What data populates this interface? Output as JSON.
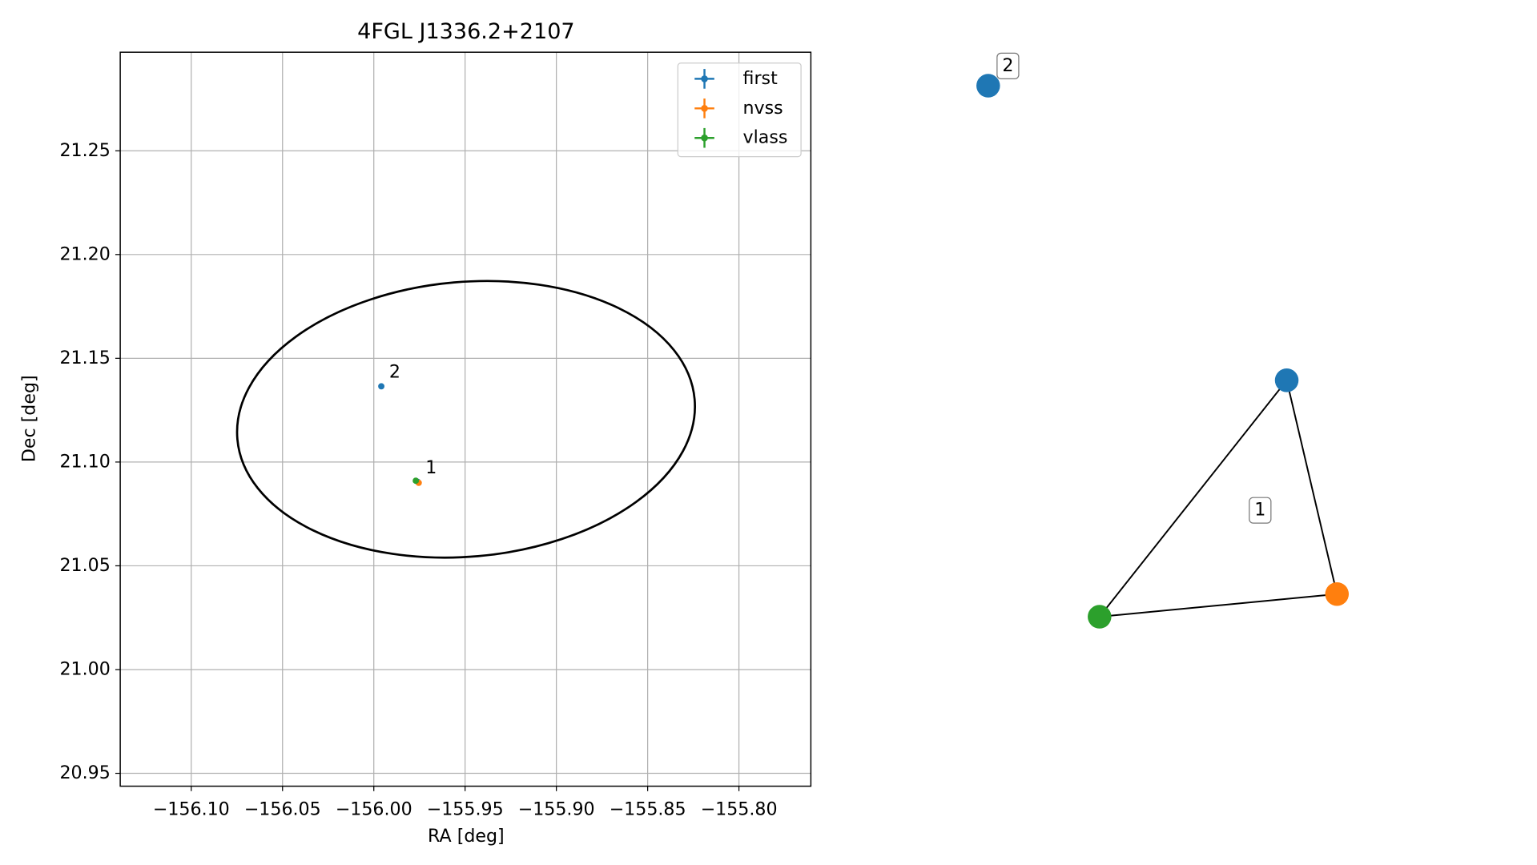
{
  "chart_data": [
    {
      "type": "scatter",
      "title": "4FGL J1336.2+2107",
      "xlabel": "RA [deg]",
      "ylabel": "Dec [deg]",
      "xlim": [
        -156.1389,
        -155.7606
      ],
      "ylim": [
        20.9438,
        21.2975
      ],
      "xticks": [
        {
          "value": -156.1,
          "label": "−156.10"
        },
        {
          "value": -156.05,
          "label": "−156.05"
        },
        {
          "value": -156.0,
          "label": "−156.00"
        },
        {
          "value": -155.95,
          "label": "−155.95"
        },
        {
          "value": -155.9,
          "label": "−155.90"
        },
        {
          "value": -155.85,
          "label": "−155.85"
        },
        {
          "value": -155.8,
          "label": "−155.80"
        }
      ],
      "yticks": [
        20.95,
        {
          "value": 21.0,
          "label": "21.00"
        },
        21.05,
        {
          "value": 21.1,
          "label": "21.10"
        },
        21.15,
        {
          "value": 21.2,
          "label": "21.20"
        },
        21.25
      ],
      "grid": true,
      "legend": "upper right",
      "series": [
        {
          "name": "first",
          "color": "#1f77b4",
          "x": [
            -155.9959,
            -155.976
          ],
          "y": [
            21.1365,
            21.0905
          ]
        },
        {
          "name": "nvss",
          "color": "#ff7f0e",
          "x": [
            -155.9754
          ],
          "y": [
            21.09
          ]
        },
        {
          "name": "vlass",
          "color": "#2ca02c",
          "x": [
            -155.977
          ],
          "y": [
            21.091
          ]
        }
      ],
      "ellipse": {
        "center": [
          -155.9495,
          21.1206
        ],
        "width": 0.2514,
        "height": 0.1324,
        "angle": 5
      },
      "annotations": [
        {
          "text": "2",
          "x": -155.9959,
          "y": 21.1365
        },
        {
          "text": "1",
          "x": -155.976,
          "y": 21.0905
        }
      ]
    },
    {
      "type": "network",
      "nodes": [
        {
          "color": "#1f77b4"
        },
        {
          "color": "#1f77b4"
        },
        {
          "color": "#ff7f0e"
        },
        {
          "color": "#2ca02c"
        }
      ],
      "edges": [
        [
          1,
          2
        ],
        [
          2,
          3
        ],
        [
          3,
          1
        ]
      ],
      "group_labels": [
        "2",
        "1"
      ]
    }
  ]
}
